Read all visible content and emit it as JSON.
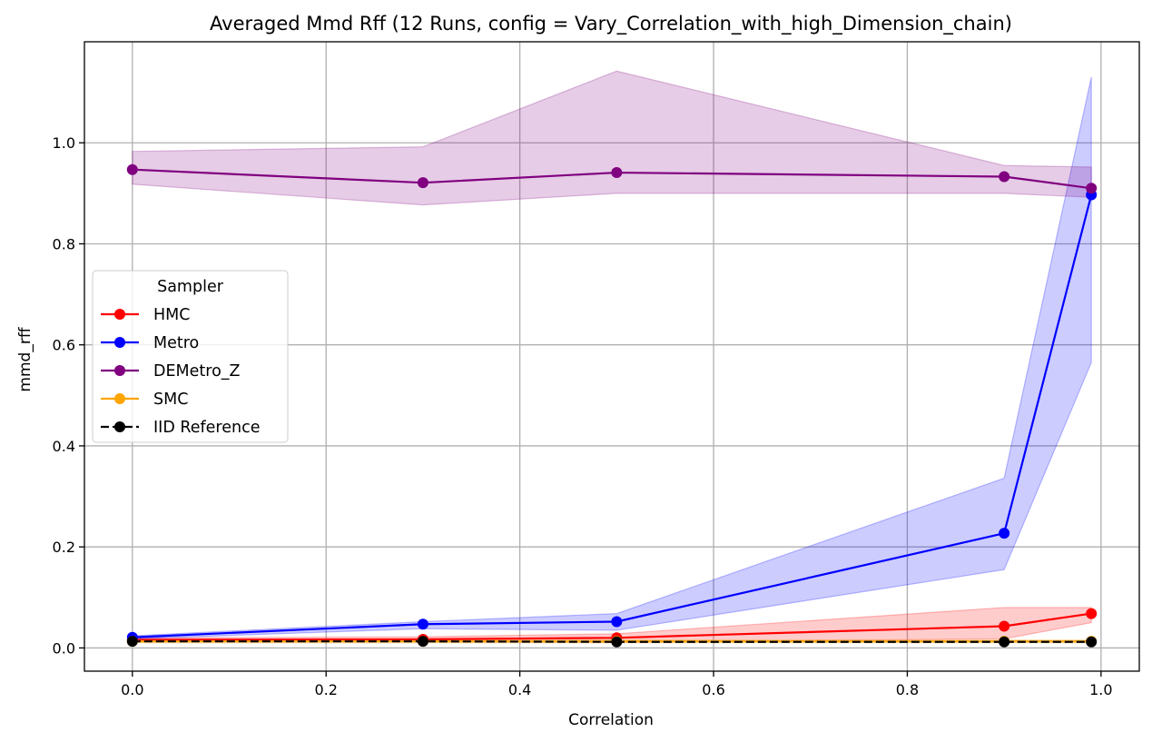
{
  "chart_data": {
    "type": "line",
    "title": "Averaged Mmd Rff (12 Runs, config = Vary_Correlation_with_high_Dimension_chain)",
    "xlabel": "Correlation",
    "ylabel": "mmd_rff",
    "xlim": [
      -0.0495,
      1.0395
    ],
    "ylim": [
      -0.046,
      1.2
    ],
    "xticks": [
      0.0,
      0.2,
      0.4,
      0.6,
      0.8,
      1.0
    ],
    "xtick_labels": [
      "0.0",
      "0.2",
      "0.4",
      "0.6",
      "0.8",
      "1.0"
    ],
    "yticks": [
      0.0,
      0.2,
      0.4,
      0.6,
      0.8,
      1.0
    ],
    "ytick_labels": [
      "0.0",
      "0.2",
      "0.4",
      "0.6",
      "0.8",
      "1.0"
    ],
    "grid": true,
    "legend": {
      "title": "Sampler",
      "placement": "center-left"
    },
    "x": [
      0.0,
      0.3,
      0.5,
      0.9,
      0.99
    ],
    "series": [
      {
        "name": "HMC",
        "color": "#ff0000",
        "band_color": "#ff0000",
        "dashed": false,
        "values": [
          0.016,
          0.017,
          0.02,
          0.043,
          0.068
        ],
        "lower": [
          0.012,
          0.012,
          0.011,
          0.018,
          0.05
        ],
        "upper": [
          0.02,
          0.022,
          0.028,
          0.08,
          0.08
        ]
      },
      {
        "name": "Metro",
        "color": "#0000ff",
        "band_color": "#0000ff",
        "dashed": false,
        "values": [
          0.021,
          0.047,
          0.052,
          0.227,
          0.897
        ],
        "lower": [
          0.018,
          0.038,
          0.035,
          0.155,
          0.565
        ],
        "upper": [
          0.024,
          0.052,
          0.068,
          0.336,
          1.13
        ]
      },
      {
        "name": "DEMetro_Z",
        "color": "#800080",
        "band_color": "#800080",
        "dashed": false,
        "values": [
          0.947,
          0.921,
          0.941,
          0.933,
          0.91
        ],
        "lower": [
          0.918,
          0.877,
          0.9,
          0.9,
          0.892
        ],
        "upper": [
          0.983,
          0.992,
          1.142,
          0.955,
          0.952
        ]
      },
      {
        "name": "SMC",
        "color": "#ffa500",
        "band_color": "#ffa500",
        "dashed": false,
        "values": [
          0.013,
          0.013,
          0.013,
          0.013,
          0.013
        ],
        "lower": [
          0.01,
          0.01,
          0.01,
          0.01,
          0.01
        ],
        "upper": [
          0.016,
          0.016,
          0.016,
          0.016,
          0.016
        ]
      },
      {
        "name": "IID Reference",
        "color": "#000000",
        "dashed": true,
        "values": [
          0.013,
          0.013,
          0.012,
          0.012,
          0.012
        ]
      }
    ]
  }
}
